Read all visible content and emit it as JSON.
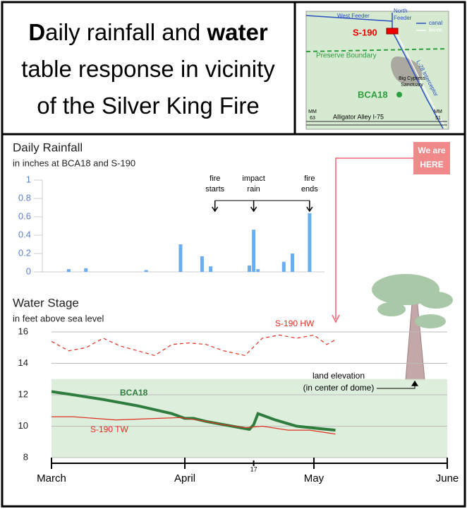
{
  "title": [
    [
      {
        "text": "D",
        "bold": true
      },
      {
        "text": "aily rainfall and "
      },
      {
        "text": "water",
        "bold": true
      }
    ],
    [
      {
        "text": "table response in vicinity"
      }
    ],
    [
      {
        "text": "of the Silver King Fire"
      }
    ]
  ],
  "map": {
    "west_feeder": "West Feeder",
    "north_feeder": [
      "North",
      "Feeder"
    ],
    "canal": "canal",
    "levee": "levee",
    "s190": "S-190",
    "preserve_boundary": "Preserve Boundary",
    "sanctuary": [
      "Big Cypress",
      "Sanctuary"
    ],
    "interceptor": "L-28 Interceptor",
    "bca18": "BCA18",
    "mm63": [
      "MM",
      "63"
    ],
    "mm51": [
      "MM",
      "51"
    ],
    "road": "Alligator Alley I-75"
  },
  "we_are_here": [
    "We are",
    "HERE"
  ],
  "chart_data": [
    {
      "type": "bar",
      "title": "Daily Rainfall",
      "subtitle": "in inches at BCA18 and S-190",
      "color": "#6aaef0",
      "x": [
        4,
        8,
        22,
        30,
        35,
        37,
        46,
        47,
        48,
        54,
        56,
        60
      ],
      "values": [
        0.03,
        0.04,
        0.02,
        0.3,
        0.17,
        0.06,
        0.07,
        0.46,
        0.03,
        0.11,
        0.2,
        0.64
      ],
      "xlim": [
        0,
        92
      ],
      "ylim": [
        0,
        1
      ],
      "yticks": [
        0,
        0.2,
        0.4,
        0.6,
        0.8,
        1
      ],
      "annotations": [
        {
          "x": 38,
          "text": [
            "fire",
            "starts"
          ]
        },
        {
          "x": 47,
          "text": [
            "impact",
            "rain"
          ]
        },
        {
          "x": 60,
          "text": [
            "fire",
            "ends"
          ]
        }
      ]
    },
    {
      "type": "line",
      "title": "Water Stage",
      "subtitle": "in feet above sea level",
      "grid": true,
      "xlim": [
        0,
        92
      ],
      "xticks": [
        {
          "value": 0,
          "label": "March"
        },
        {
          "value": 31,
          "label": "April"
        },
        {
          "value": 47,
          "label": "17"
        },
        {
          "value": 61,
          "label": "May"
        },
        {
          "value": 92,
          "label": "June"
        }
      ],
      "ylim": [
        8,
        16
      ],
      "yticks": [
        8,
        10,
        12,
        14,
        16
      ],
      "land_elevation": {
        "value": 13,
        "label": [
          "land elevation",
          "(in center of dome)"
        ]
      },
      "series": [
        {
          "name": "BCA18",
          "color": "#2e7d3e",
          "width": 4,
          "dash": false,
          "x": [
            0,
            5,
            12,
            20,
            28,
            31,
            33,
            36,
            42,
            46,
            47,
            48,
            52,
            57,
            62,
            66
          ],
          "values": [
            12.2,
            12.0,
            11.7,
            11.3,
            10.8,
            10.5,
            10.5,
            10.3,
            10.0,
            9.8,
            10.1,
            10.8,
            10.4,
            10.0,
            9.85,
            9.75
          ]
        },
        {
          "name": "S-190 TW",
          "color": "#e03020",
          "width": 1.2,
          "dash": false,
          "x": [
            0,
            5,
            10,
            15,
            20,
            25,
            30,
            35,
            40,
            45,
            49,
            55,
            60,
            66
          ],
          "values": [
            10.6,
            10.6,
            10.5,
            10.4,
            10.45,
            10.5,
            10.55,
            10.35,
            10.1,
            9.9,
            10.0,
            9.75,
            9.75,
            9.5
          ]
        },
        {
          "name": "S-190 HW",
          "color": "#e03020",
          "width": 1.2,
          "dash": true,
          "x": [
            0,
            4,
            8,
            12,
            16,
            20,
            24,
            28,
            32,
            36,
            40,
            45,
            49,
            53,
            57,
            61,
            64,
            66
          ],
          "values": [
            15.4,
            14.8,
            15.0,
            15.6,
            15.1,
            14.8,
            14.5,
            15.2,
            15.3,
            15.2,
            14.8,
            14.5,
            15.6,
            15.8,
            15.6,
            15.8,
            15.2,
            15.5
          ]
        }
      ]
    }
  ]
}
